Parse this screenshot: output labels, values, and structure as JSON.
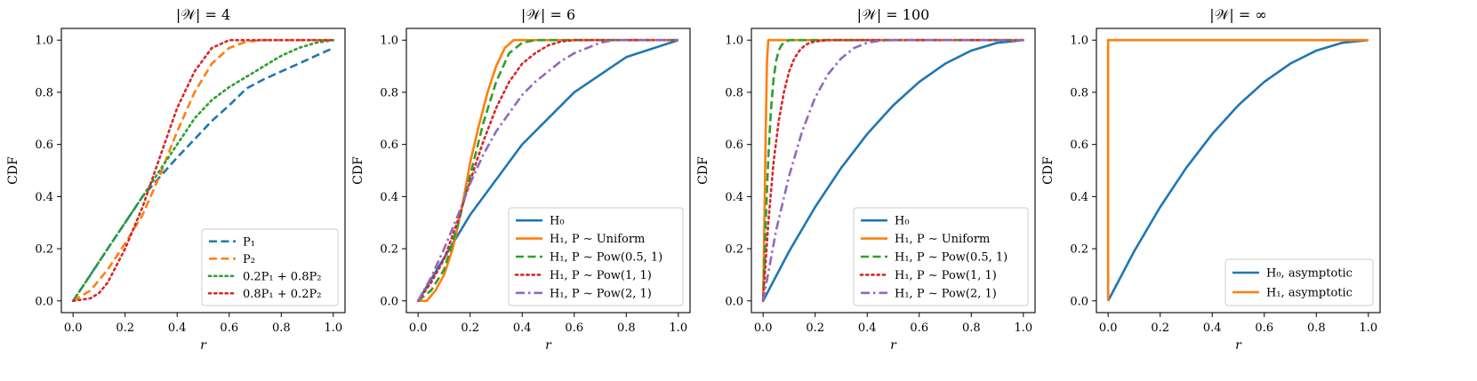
{
  "colors": {
    "blue": "#1f77b4",
    "orange": "#ff7f0e",
    "green": "#2ca02c",
    "red": "#d62728",
    "purple": "#9467bd"
  },
  "chart_data": [
    {
      "type": "line",
      "title": "|𝒲| = 4",
      "xlabel": "r",
      "ylabel": "CDF",
      "xlim": [
        0,
        1
      ],
      "ylim": [
        0,
        1
      ],
      "xticks": [
        "0.0",
        "0.2",
        "0.4",
        "0.6",
        "0.8",
        "1.0"
      ],
      "yticks": [
        "0.0",
        "0.2",
        "0.4",
        "0.6",
        "0.8",
        "1.0"
      ],
      "legend_position": "lower-right",
      "series": [
        {
          "name": "P₁",
          "color": "blue",
          "style": "dashed",
          "x": [
            0,
            0.067,
            0.133,
            0.2,
            0.267,
            0.333,
            0.4,
            0.467,
            0.533,
            0.6,
            0.667,
            0.733,
            0.8,
            0.867,
            0.933,
            1.0
          ],
          "y": [
            0,
            0.1,
            0.2,
            0.3,
            0.4,
            0.475,
            0.55,
            0.62,
            0.69,
            0.75,
            0.815,
            0.85,
            0.88,
            0.91,
            0.94,
            0.97
          ]
        },
        {
          "name": "P₂",
          "color": "orange",
          "style": "dashed",
          "x": [
            0,
            0.067,
            0.133,
            0.2,
            0.267,
            0.333,
            0.4,
            0.467,
            0.533,
            0.6,
            0.667,
            0.733,
            0.8,
            0.867,
            0.933,
            1.0
          ],
          "y": [
            0,
            0.04,
            0.12,
            0.22,
            0.33,
            0.48,
            0.65,
            0.8,
            0.91,
            0.97,
            0.995,
            1.0,
            1.0,
            1.0,
            1.0,
            1.0
          ]
        },
        {
          "name": "0.2P₁ + 0.8P₂",
          "color": "green",
          "style": "dotted",
          "x": [
            0,
            0.067,
            0.133,
            0.2,
            0.267,
            0.333,
            0.4,
            0.467,
            0.533,
            0.6,
            0.667,
            0.733,
            0.8,
            0.867,
            0.933,
            1.0
          ],
          "y": [
            0,
            0.1,
            0.2,
            0.3,
            0.4,
            0.5,
            0.6,
            0.7,
            0.77,
            0.82,
            0.86,
            0.9,
            0.94,
            0.97,
            0.99,
            1.0
          ]
        },
        {
          "name": "0.8P₁ + 0.2P₂",
          "color": "red",
          "style": "dotted",
          "x": [
            0,
            0.067,
            0.1,
            0.133,
            0.2,
            0.267,
            0.333,
            0.4,
            0.467,
            0.533,
            0.6,
            0.667,
            0.733,
            0.8,
            1.0
          ],
          "y": [
            0,
            0.01,
            0.03,
            0.07,
            0.2,
            0.36,
            0.55,
            0.74,
            0.88,
            0.97,
            1.0,
            1.0,
            1.0,
            1.0,
            1.0
          ]
        }
      ]
    },
    {
      "type": "line",
      "title": "|𝒲| = 6",
      "xlabel": "r",
      "ylabel": "CDF",
      "xlim": [
        0,
        1
      ],
      "ylim": [
        0,
        1
      ],
      "xticks": [
        "0.0",
        "0.2",
        "0.4",
        "0.6",
        "0.8",
        "1.0"
      ],
      "yticks": [
        "0.0",
        "0.2",
        "0.4",
        "0.6",
        "0.8",
        "1.0"
      ],
      "legend_position": "lower-right",
      "series": [
        {
          "name": "H₀",
          "color": "blue",
          "style": "solid",
          "x": [
            0,
            0.2,
            0.4,
            0.6,
            0.8,
            1.0
          ],
          "y": [
            0,
            0.33,
            0.6,
            0.8,
            0.935,
            1.0
          ]
        },
        {
          "name": "H₁, P ∼ Uniform",
          "color": "orange",
          "style": "solid",
          "x": [
            0,
            0.033,
            0.067,
            0.1,
            0.133,
            0.167,
            0.2,
            0.233,
            0.267,
            0.3,
            0.333,
            0.367,
            0.4,
            1.0
          ],
          "y": [
            0,
            0.0,
            0.04,
            0.1,
            0.2,
            0.35,
            0.53,
            0.67,
            0.8,
            0.9,
            0.97,
            1.0,
            1.0,
            1.0
          ]
        },
        {
          "name": "H₁, P ∼ Pow(0.5, 1)",
          "color": "green",
          "style": "dashed",
          "x": [
            0,
            0.05,
            0.1,
            0.15,
            0.2,
            0.25,
            0.3,
            0.35,
            0.4,
            0.45,
            1.0
          ],
          "y": [
            0,
            0.04,
            0.12,
            0.28,
            0.48,
            0.68,
            0.84,
            0.95,
            0.99,
            1.0,
            1.0
          ]
        },
        {
          "name": "H₁, P ∼ Pow(1, 1)",
          "color": "red",
          "style": "dotted",
          "x": [
            0,
            0.05,
            0.1,
            0.15,
            0.2,
            0.25,
            0.3,
            0.35,
            0.4,
            0.45,
            0.5,
            0.55,
            0.6,
            0.65,
            1.0
          ],
          "y": [
            0,
            0.07,
            0.16,
            0.3,
            0.46,
            0.61,
            0.74,
            0.84,
            0.91,
            0.95,
            0.98,
            0.995,
            1.0,
            1.0,
            1.0
          ]
        },
        {
          "name": "H₁, P ∼ Pow(2, 1)",
          "color": "purple",
          "style": "dashdot",
          "x": [
            0,
            0.05,
            0.1,
            0.15,
            0.2,
            0.25,
            0.3,
            0.35,
            0.4,
            0.45,
            0.5,
            0.55,
            0.6,
            0.65,
            0.7,
            0.75,
            0.8,
            1.0
          ],
          "y": [
            0,
            0.09,
            0.2,
            0.32,
            0.45,
            0.56,
            0.65,
            0.72,
            0.79,
            0.84,
            0.88,
            0.92,
            0.95,
            0.97,
            0.99,
            1.0,
            1.0,
            1.0
          ]
        }
      ]
    },
    {
      "type": "line",
      "title": "|𝒲| = 100",
      "xlabel": "r",
      "ylabel": "CDF",
      "xlim": [
        0,
        1
      ],
      "ylim": [
        0,
        1
      ],
      "xticks": [
        "0.0",
        "0.2",
        "0.4",
        "0.6",
        "0.8",
        "1.0"
      ],
      "yticks": [
        "0.0",
        "0.2",
        "0.4",
        "0.6",
        "0.8",
        "1.0"
      ],
      "legend_position": "lower-right",
      "series": [
        {
          "name": "H₀",
          "color": "blue",
          "style": "solid",
          "x": [
            0,
            0.1,
            0.2,
            0.3,
            0.4,
            0.5,
            0.6,
            0.7,
            0.8,
            0.9,
            1.0
          ],
          "y": [
            0,
            0.19,
            0.36,
            0.51,
            0.64,
            0.75,
            0.84,
            0.91,
            0.96,
            0.99,
            1.0
          ]
        },
        {
          "name": "H₁, P ∼ Uniform",
          "color": "orange",
          "style": "solid",
          "x": [
            0,
            0.005,
            0.01,
            0.015,
            0.02,
            1.0
          ],
          "y": [
            0,
            0.3,
            0.65,
            0.92,
            1.0,
            1.0
          ]
        },
        {
          "name": "H₁, P ∼ Pow(0.5, 1)",
          "color": "green",
          "style": "dashed",
          "x": [
            0,
            0.01,
            0.02,
            0.03,
            0.04,
            0.05,
            0.06,
            0.07,
            0.08,
            0.1,
            1.0
          ],
          "y": [
            0,
            0.3,
            0.55,
            0.73,
            0.85,
            0.92,
            0.96,
            0.98,
            0.99,
            1.0,
            1.0
          ]
        },
        {
          "name": "H₁, P ∼ Pow(1, 1)",
          "color": "red",
          "style": "dotted",
          "x": [
            0,
            0.02,
            0.04,
            0.06,
            0.08,
            0.1,
            0.12,
            0.14,
            0.16,
            0.18,
            0.2,
            0.25,
            1.0
          ],
          "y": [
            0,
            0.3,
            0.53,
            0.69,
            0.8,
            0.88,
            0.93,
            0.96,
            0.98,
            0.99,
            0.995,
            1.0,
            1.0
          ]
        },
        {
          "name": "H₁, P ∼ Pow(2, 1)",
          "color": "purple",
          "style": "dashdot",
          "x": [
            0,
            0.05,
            0.1,
            0.15,
            0.2,
            0.25,
            0.3,
            0.35,
            0.4,
            0.45,
            0.5,
            1.0
          ],
          "y": [
            0,
            0.27,
            0.48,
            0.65,
            0.78,
            0.87,
            0.93,
            0.97,
            0.99,
            0.998,
            1.0,
            1.0
          ]
        }
      ]
    },
    {
      "type": "line",
      "title": "|𝒲| = ∞",
      "xlabel": "r",
      "ylabel": "CDF",
      "xlim": [
        0,
        1
      ],
      "ylim": [
        0,
        1
      ],
      "xticks": [
        "0.0",
        "0.2",
        "0.4",
        "0.6",
        "0.8",
        "1.0"
      ],
      "yticks": [
        "0.0",
        "0.2",
        "0.4",
        "0.6",
        "0.8",
        "1.0"
      ],
      "legend_position": "lower-right",
      "series": [
        {
          "name": "H₀, asymptotic",
          "color": "blue",
          "style": "solid",
          "x": [
            0,
            0.1,
            0.2,
            0.3,
            0.4,
            0.5,
            0.6,
            0.7,
            0.8,
            0.9,
            1.0
          ],
          "y": [
            0,
            0.19,
            0.36,
            0.51,
            0.64,
            0.75,
            0.84,
            0.91,
            0.96,
            0.99,
            1.0
          ]
        },
        {
          "name": "H₁, asymptotic",
          "color": "orange",
          "style": "solid",
          "x": [
            0,
            0.0,
            1.0
          ],
          "y": [
            0,
            1.0,
            1.0
          ]
        }
      ]
    }
  ]
}
